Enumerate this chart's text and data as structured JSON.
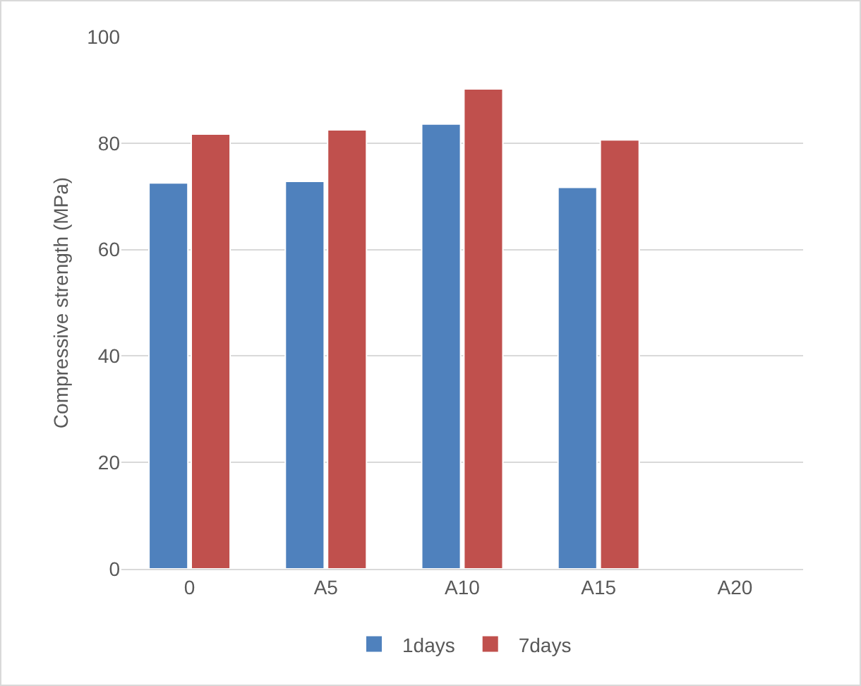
{
  "chart_data": {
    "type": "bar",
    "ylabel": "Compressive strength (MPa)",
    "categories": [
      "0",
      "A5",
      "A10",
      "A15",
      "A20"
    ],
    "series": [
      {
        "name": "1days",
        "color": "#4f81bd",
        "values": [
          72.5,
          72.8,
          83.6,
          71.7,
          null
        ]
      },
      {
        "name": "7days",
        "color": "#c0504d",
        "values": [
          81.7,
          82.5,
          90.2,
          80.6,
          null
        ]
      }
    ],
    "ylim": [
      0,
      100
    ],
    "yticks": [
      0,
      20,
      40,
      60,
      80,
      100
    ],
    "grid": "y",
    "legend": "bottom"
  }
}
